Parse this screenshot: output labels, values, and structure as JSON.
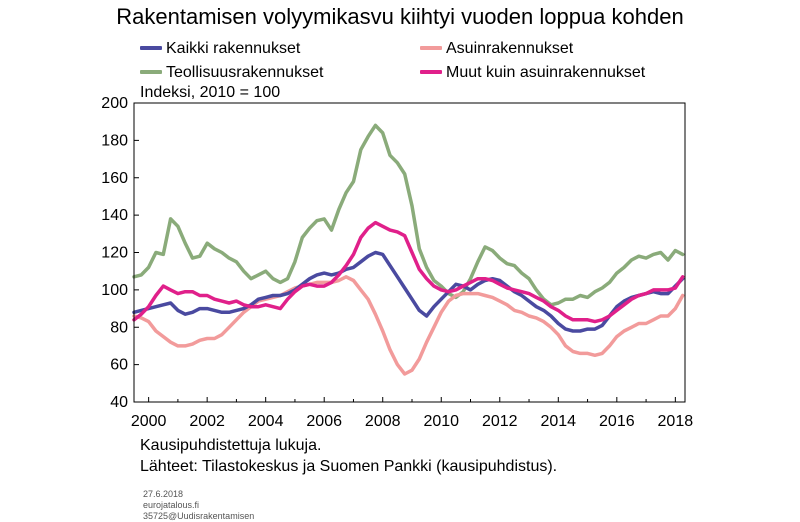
{
  "chart_data": {
    "type": "line",
    "title": "Rakentamisen volyymikasvu kiihtyi vuoden loppua kohden",
    "ylabel": "Indeksi, 2010 = 100",
    "xlim": [
      1999.5,
      2018.33
    ],
    "ylim": [
      40,
      200
    ],
    "yticks": [
      40,
      60,
      80,
      100,
      120,
      140,
      160,
      180,
      200
    ],
    "xticks": [
      2000,
      2002,
      2004,
      2006,
      2008,
      2010,
      2012,
      2014,
      2016,
      2018
    ],
    "grid": false,
    "legend_position": "top",
    "series": [
      {
        "name": "Kaikki rakennukset",
        "color": "#4a4aa0",
        "x": [
          1999.5,
          1999.75,
          2000.0,
          2000.25,
          2000.5,
          2000.75,
          2001.0,
          2001.25,
          2001.5,
          2001.75,
          2002.0,
          2002.25,
          2002.5,
          2002.75,
          2003.0,
          2003.25,
          2003.5,
          2003.75,
          2004.0,
          2004.25,
          2004.5,
          2004.75,
          2005.0,
          2005.25,
          2005.5,
          2005.75,
          2006.0,
          2006.25,
          2006.5,
          2006.75,
          2007.0,
          2007.25,
          2007.5,
          2007.75,
          2008.0,
          2008.25,
          2008.5,
          2008.75,
          2009.0,
          2009.25,
          2009.5,
          2009.75,
          2010.0,
          2010.25,
          2010.5,
          2010.75,
          2011.0,
          2011.25,
          2011.5,
          2011.75,
          2012.0,
          2012.25,
          2012.5,
          2012.75,
          2013.0,
          2013.25,
          2013.5,
          2013.75,
          2014.0,
          2014.25,
          2014.5,
          2014.75,
          2015.0,
          2015.25,
          2015.5,
          2015.75,
          2016.0,
          2016.25,
          2016.5,
          2016.75,
          2017.0,
          2017.25,
          2017.5,
          2017.75,
          2018.0,
          2018.25
        ],
        "values": [
          88,
          89,
          90,
          91,
          92,
          93,
          89,
          87,
          88,
          90,
          90,
          89,
          88,
          88,
          89,
          90,
          92,
          95,
          96,
          97,
          97,
          98,
          100,
          103,
          106,
          108,
          109,
          108,
          109,
          111,
          112,
          115,
          118,
          120,
          119,
          113,
          107,
          101,
          95,
          89,
          86,
          91,
          95,
          99,
          103,
          102,
          100,
          103,
          105,
          106,
          105,
          102,
          99,
          97,
          94,
          91,
          89,
          86,
          82,
          79,
          78,
          78,
          79,
          79,
          81,
          86,
          91,
          94,
          96,
          97,
          98,
          99,
          98,
          98,
          102,
          106
        ]
      },
      {
        "name": "Asuinrakennukset",
        "color": "#f29b9b",
        "x": [
          1999.5,
          1999.75,
          2000.0,
          2000.25,
          2000.5,
          2000.75,
          2001.0,
          2001.25,
          2001.5,
          2001.75,
          2002.0,
          2002.25,
          2002.5,
          2002.75,
          2003.0,
          2003.25,
          2003.5,
          2003.75,
          2004.0,
          2004.25,
          2004.5,
          2004.75,
          2005.0,
          2005.25,
          2005.5,
          2005.75,
          2006.0,
          2006.25,
          2006.5,
          2006.75,
          2007.0,
          2007.25,
          2007.5,
          2007.75,
          2008.0,
          2008.25,
          2008.5,
          2008.75,
          2009.0,
          2009.25,
          2009.5,
          2009.75,
          2010.0,
          2010.25,
          2010.5,
          2010.75,
          2011.0,
          2011.25,
          2011.5,
          2011.75,
          2012.0,
          2012.25,
          2012.5,
          2012.75,
          2013.0,
          2013.25,
          2013.5,
          2013.75,
          2014.0,
          2014.25,
          2014.5,
          2014.75,
          2015.0,
          2015.25,
          2015.5,
          2015.75,
          2016.0,
          2016.25,
          2016.5,
          2016.75,
          2017.0,
          2017.25,
          2017.5,
          2017.75,
          2018.0,
          2018.25
        ],
        "values": [
          86,
          85,
          83,
          78,
          75,
          72,
          70,
          70,
          71,
          73,
          74,
          74,
          76,
          80,
          84,
          88,
          91,
          94,
          95,
          96,
          97,
          99,
          101,
          102,
          103,
          104,
          104,
          104,
          105,
          107,
          105,
          100,
          95,
          87,
          78,
          68,
          60,
          55,
          57,
          63,
          72,
          80,
          88,
          94,
          97,
          98,
          98,
          98,
          97,
          96,
          94,
          92,
          89,
          88,
          86,
          85,
          83,
          80,
          76,
          70,
          67,
          66,
          66,
          65,
          66,
          70,
          75,
          78,
          80,
          82,
          82,
          84,
          86,
          86,
          90,
          97
        ]
      },
      {
        "name": "Teollisuusrakennukset",
        "color": "#8aab7a",
        "x": [
          1999.5,
          1999.75,
          2000.0,
          2000.25,
          2000.5,
          2000.75,
          2001.0,
          2001.25,
          2001.5,
          2001.75,
          2002.0,
          2002.25,
          2002.5,
          2002.75,
          2003.0,
          2003.25,
          2003.5,
          2003.75,
          2004.0,
          2004.25,
          2004.5,
          2004.75,
          2005.0,
          2005.25,
          2005.5,
          2005.75,
          2006.0,
          2006.25,
          2006.5,
          2006.75,
          2007.0,
          2007.25,
          2007.5,
          2007.75,
          2008.0,
          2008.25,
          2008.5,
          2008.75,
          2009.0,
          2009.25,
          2009.5,
          2009.75,
          2010.0,
          2010.25,
          2010.5,
          2010.75,
          2011.0,
          2011.25,
          2011.5,
          2011.75,
          2012.0,
          2012.25,
          2012.5,
          2012.75,
          2013.0,
          2013.25,
          2013.5,
          2013.75,
          2014.0,
          2014.25,
          2014.5,
          2014.75,
          2015.0,
          2015.25,
          2015.5,
          2015.75,
          2016.0,
          2016.25,
          2016.5,
          2016.75,
          2017.0,
          2017.25,
          2017.5,
          2017.75,
          2018.0,
          2018.25
        ],
        "values": [
          107,
          108,
          112,
          120,
          119,
          138,
          134,
          125,
          117,
          118,
          125,
          122,
          120,
          117,
          115,
          110,
          106,
          108,
          110,
          106,
          104,
          106,
          115,
          128,
          133,
          137,
          138,
          132,
          143,
          152,
          158,
          175,
          182,
          188,
          184,
          172,
          168,
          162,
          145,
          122,
          112,
          105,
          102,
          98,
          96,
          99,
          106,
          115,
          123,
          121,
          117,
          114,
          113,
          109,
          106,
          100,
          95,
          92,
          93,
          95,
          95,
          97,
          96,
          99,
          101,
          104,
          109,
          112,
          116,
          118,
          117,
          119,
          120,
          116,
          121,
          119
        ]
      },
      {
        "name": "Muut kuin asuinrakennukset",
        "color": "#e0208a",
        "x": [
          1999.5,
          1999.75,
          2000.0,
          2000.25,
          2000.5,
          2000.75,
          2001.0,
          2001.25,
          2001.5,
          2001.75,
          2002.0,
          2002.25,
          2002.5,
          2002.75,
          2003.0,
          2003.25,
          2003.5,
          2003.75,
          2004.0,
          2004.25,
          2004.5,
          2004.75,
          2005.0,
          2005.25,
          2005.5,
          2005.75,
          2006.0,
          2006.25,
          2006.5,
          2006.75,
          2007.0,
          2007.25,
          2007.5,
          2007.75,
          2008.0,
          2008.25,
          2008.5,
          2008.75,
          2009.0,
          2009.25,
          2009.5,
          2009.75,
          2010.0,
          2010.25,
          2010.5,
          2010.75,
          2011.0,
          2011.25,
          2011.5,
          2011.75,
          2012.0,
          2012.25,
          2012.5,
          2012.75,
          2013.0,
          2013.25,
          2013.5,
          2013.75,
          2014.0,
          2014.25,
          2014.5,
          2014.75,
          2015.0,
          2015.25,
          2015.5,
          2015.75,
          2016.0,
          2016.25,
          2016.5,
          2016.75,
          2017.0,
          2017.25,
          2017.5,
          2017.75,
          2018.0,
          2018.25
        ],
        "values": [
          84,
          87,
          91,
          97,
          102,
          100,
          98,
          99,
          99,
          97,
          97,
          95,
          94,
          93,
          94,
          92,
          91,
          91,
          92,
          91,
          90,
          95,
          99,
          102,
          103,
          102,
          102,
          104,
          108,
          113,
          119,
          128,
          133,
          136,
          134,
          132,
          131,
          129,
          120,
          111,
          106,
          102,
          100,
          99,
          100,
          102,
          104,
          106,
          106,
          105,
          103,
          101,
          100,
          99,
          98,
          96,
          94,
          91,
          89,
          86,
          84,
          84,
          84,
          83,
          84,
          86,
          89,
          92,
          95,
          97,
          98,
          100,
          100,
          100,
          101,
          107
        ]
      }
    ]
  },
  "notes": {
    "line1": "Kausipuhdistettuja lukuja.",
    "line2": "Lähteet: Tilastokeskus ja Suomen Pankki (kausipuhdistus)."
  },
  "footer": {
    "date": "27.6.2018",
    "site": "eurojatalous.fi",
    "code": "35725@Uudisrakentamisen"
  }
}
